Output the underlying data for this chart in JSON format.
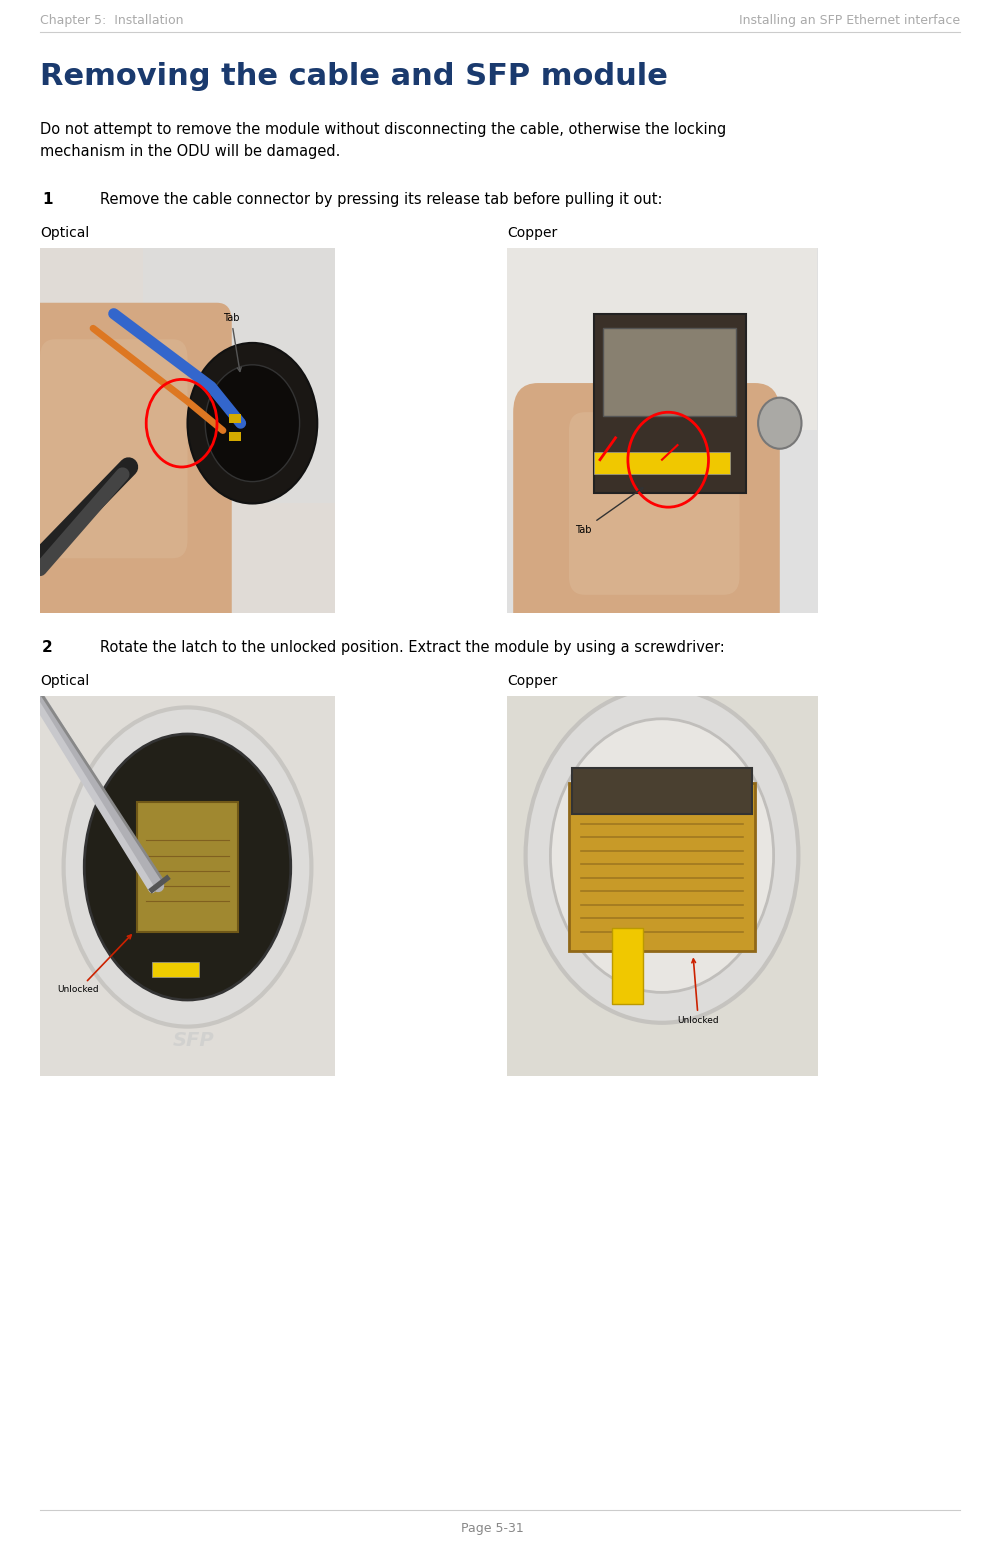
{
  "page_width": 9.85,
  "page_height": 15.55,
  "dpi": 100,
  "background_color": "#ffffff",
  "header_left": "Chapter 5:  Installation",
  "header_right": "Installing an SFP Ethernet interface",
  "header_color": "#aaaaaa",
  "header_fontsize": 9,
  "title": "Removing the cable and SFP module",
  "title_color": "#1a3a6e",
  "title_fontsize": 22,
  "body_text1": "Do not attempt to remove the module without disconnecting the cable, otherwise the locking\nmechanism in the ODU will be damaged.",
  "body_fontsize": 10.5,
  "body_color": "#000000",
  "step1_num": "1",
  "step1_text": "Remove the cable connector by pressing its release tab before pulling it out:",
  "step2_num": "2",
  "step2_text": "Rotate the latch to the unlocked position. Extract the module by using a screwdriver:",
  "step_fontsize": 10.5,
  "step_num_fontsize": 11,
  "label_optical": "Optical",
  "label_copper": "Copper",
  "label_fontsize": 10,
  "footer_text": "Page 5-31",
  "footer_fontsize": 9,
  "footer_color": "#888888",
  "header_line_color": "#cccccc",
  "img1_opt_colors": {
    "bg": [
      0.88,
      0.85,
      0.82
    ],
    "thumb": [
      0.82,
      0.65,
      0.55
    ],
    "device_bg": [
      0.15,
      0.13,
      0.12
    ],
    "blue_cable": [
      0.2,
      0.45,
      0.85
    ],
    "orange_cable": [
      0.9,
      0.5,
      0.1
    ],
    "circle_color": "red"
  },
  "img1_cop_colors": {
    "bg": [
      0.88,
      0.85,
      0.82
    ],
    "thumb": [
      0.82,
      0.65,
      0.55
    ],
    "device": [
      0.35,
      0.3,
      0.25
    ],
    "yellow_tab": [
      0.95,
      0.85,
      0.1
    ],
    "circle_color": "red"
  },
  "img2_opt_colors": {
    "bg": [
      0.88,
      0.85,
      0.82
    ],
    "module": [
      0.55,
      0.48,
      0.25
    ],
    "screwdriver": [
      0.7,
      0.7,
      0.72
    ]
  },
  "img2_cop_colors": {
    "bg": [
      0.88,
      0.85,
      0.82
    ],
    "module": [
      0.65,
      0.52,
      0.22
    ],
    "yellow": [
      0.95,
      0.85,
      0.1
    ]
  }
}
